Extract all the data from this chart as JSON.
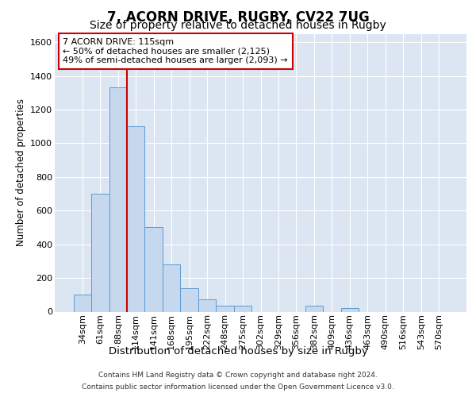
{
  "title": "7, ACORN DRIVE, RUGBY, CV22 7UG",
  "subtitle": "Size of property relative to detached houses in Rugby",
  "xlabel": "Distribution of detached houses by size in Rugby",
  "ylabel": "Number of detached properties",
  "categories": [
    "34sqm",
    "61sqm",
    "88sqm",
    "114sqm",
    "141sqm",
    "168sqm",
    "195sqm",
    "222sqm",
    "248sqm",
    "275sqm",
    "302sqm",
    "329sqm",
    "356sqm",
    "382sqm",
    "409sqm",
    "436sqm",
    "463sqm",
    "490sqm",
    "516sqm",
    "543sqm",
    "570sqm"
  ],
  "values": [
    100,
    700,
    1330,
    1100,
    500,
    280,
    140,
    75,
    35,
    35,
    0,
    0,
    0,
    35,
    0,
    20,
    0,
    0,
    0,
    0,
    0
  ],
  "bar_facecolor": "#c5d8ee",
  "bar_edgecolor": "#5b9bd5",
  "red_line_color": "#cc0000",
  "red_line_x": 2.5,
  "annot_line1": "7 ACORN DRIVE: 115sqm",
  "annot_line2": "← 50% of detached houses are smaller (2,125)",
  "annot_line3": "49% of semi-detached houses are larger (2,093) →",
  "annot_box_facecolor": "#ffffff",
  "annot_box_edgecolor": "#cc0000",
  "ylim": [
    0,
    1650
  ],
  "yticks": [
    0,
    200,
    400,
    600,
    800,
    1000,
    1200,
    1400,
    1600
  ],
  "axes_facecolor": "#dce6f2",
  "grid_color": "#ffffff",
  "footer_line1": "Contains HM Land Registry data © Crown copyright and database right 2024.",
  "footer_line2": "Contains public sector information licensed under the Open Government Licence v3.0.",
  "title_fontsize": 12,
  "subtitle_fontsize": 10,
  "ylabel_fontsize": 8.5,
  "xlabel_fontsize": 9.5,
  "tick_fontsize": 8,
  "annot_fontsize": 8,
  "footer_fontsize": 6.5
}
